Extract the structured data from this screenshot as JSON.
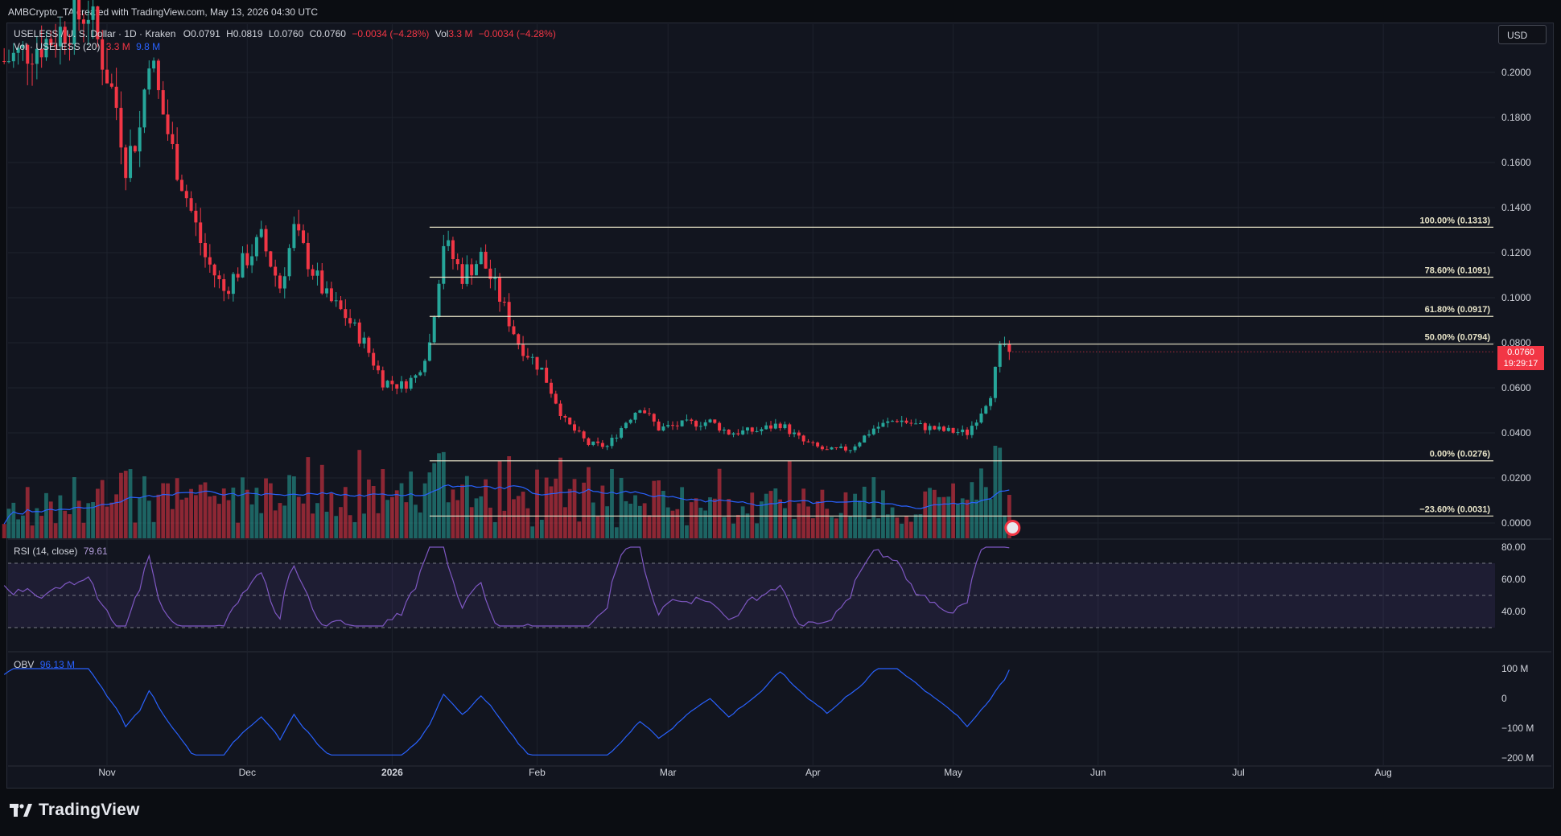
{
  "header": {
    "credit": "AMBCrypto_TA created with TradingView.com, May 13, 2026 04:30 UTC"
  },
  "toolbar": {
    "currency_label": "USD"
  },
  "legend": {
    "symbol": "USELESS / U. S. Dollar · 1D · Kraken",
    "open": "O0.0791",
    "high": "H0.0819",
    "low": "L0.0760",
    "close": "C0.0760",
    "change": "−0.0034 (−4.28%)",
    "vol_label": "Vol",
    "vol_value": "3.3 M",
    "vol_change": "−0.0034 (−4.28%)",
    "vol_ma_label": "Vol · USELESS (20)",
    "vol_ma_value1": "3.3 M",
    "vol_ma_value2": "9.8 M",
    "rsi_label": "RSI (14, close)",
    "rsi_value": "79.61",
    "obv_label": "OBV",
    "obv_value": "96.13 M"
  },
  "last_price": {
    "price": "0.0760",
    "countdown": "19:29:17"
  },
  "footer": {
    "brand": "TradingView"
  },
  "colors": {
    "up": "#26a69a",
    "down": "#f23645",
    "fib": "#e8e4c8",
    "rsi": "#7e57c2",
    "obv": "#2962ff",
    "vol_ma": "#2962ff",
    "grid": "#1e222d"
  },
  "chart_data": [
    {
      "type": "candlestick",
      "title": "USELESS / U. S. Dollar · 1D · Kraken",
      "y_axis_ticks": [
        "0.2000",
        "0.1800",
        "0.1600",
        "0.1400",
        "0.1200",
        "0.1000",
        "0.0800",
        "0.0600",
        "0.0400",
        "0.0200",
        "0.0000"
      ],
      "ylim": [
        0,
        0.2
      ],
      "x_axis_ticks": [
        "Nov",
        "Dec",
        "2026",
        "Feb",
        "Mar",
        "Apr",
        "May",
        "Jun",
        "Jul",
        "Aug"
      ],
      "x_tick_dates": [
        "2025-11-01",
        "2025-12-01",
        "2026-01-01",
        "2026-02-01",
        "2026-03-01",
        "2026-04-01",
        "2026-05-01",
        "2026-06-01",
        "2026-07-01",
        "2026-08-01"
      ],
      "fib_levels": [
        {
          "label": "100.00% (0.1313)",
          "value": 0.1313
        },
        {
          "label": "78.60% (0.1091)",
          "value": 0.1091
        },
        {
          "label": "61.80% (0.0917)",
          "value": 0.0917
        },
        {
          "label": "50.00% (0.0794)",
          "value": 0.0794
        },
        {
          "label": "0.00% (0.0276)",
          "value": 0.0276
        },
        {
          "label": "−23.60% (0.0031)",
          "value": 0.0031
        }
      ],
      "fib_start_date": "2026-01-09",
      "price_anchors": [
        [
          "2025-10-10",
          0.205
        ],
        [
          "2025-10-20",
          0.215
        ],
        [
          "2025-10-28",
          0.228
        ],
        [
          "2025-11-03",
          0.185
        ],
        [
          "2025-11-05",
          0.16
        ],
        [
          "2025-11-08",
          0.175
        ],
        [
          "2025-11-10",
          0.21
        ],
        [
          "2025-11-12",
          0.19
        ],
        [
          "2025-11-15",
          0.165
        ],
        [
          "2025-11-18",
          0.145
        ],
        [
          "2025-11-22",
          0.118
        ],
        [
          "2025-11-26",
          0.103
        ],
        [
          "2025-11-30",
          0.115
        ],
        [
          "2025-12-04",
          0.126
        ],
        [
          "2025-12-08",
          0.105
        ],
        [
          "2025-12-11",
          0.13
        ],
        [
          "2025-12-15",
          0.112
        ],
        [
          "2025-12-18",
          0.1
        ],
        [
          "2025-12-22",
          0.092
        ],
        [
          "2025-12-26",
          0.08
        ],
        [
          "2025-12-30",
          0.063
        ],
        [
          "2026-01-03",
          0.061
        ],
        [
          "2026-01-06",
          0.065
        ],
        [
          "2026-01-09",
          0.08
        ],
        [
          "2026-01-12",
          0.125
        ],
        [
          "2026-01-16",
          0.11
        ],
        [
          "2026-01-20",
          0.118
        ],
        [
          "2026-01-24",
          0.1
        ],
        [
          "2026-01-28",
          0.08
        ],
        [
          "2026-02-02",
          0.068
        ],
        [
          "2026-02-07",
          0.045
        ],
        [
          "2026-02-12",
          0.035
        ],
        [
          "2026-02-16",
          0.034
        ],
        [
          "2026-02-20",
          0.045
        ],
        [
          "2026-02-23",
          0.052
        ],
        [
          "2026-02-27",
          0.042
        ],
        [
          "2026-03-05",
          0.044
        ],
        [
          "2026-03-10",
          0.045
        ],
        [
          "2026-03-14",
          0.04
        ],
        [
          "2026-03-20",
          0.041
        ],
        [
          "2026-03-25",
          0.044
        ],
        [
          "2026-03-30",
          0.036
        ],
        [
          "2026-04-04",
          0.032
        ],
        [
          "2026-04-09",
          0.033
        ],
        [
          "2026-04-14",
          0.042
        ],
        [
          "2026-04-19",
          0.046
        ],
        [
          "2026-04-24",
          0.043
        ],
        [
          "2026-04-29",
          0.041
        ],
        [
          "2026-05-04",
          0.04
        ],
        [
          "2026-05-07",
          0.05
        ],
        [
          "2026-05-09",
          0.058
        ],
        [
          "2026-05-10",
          0.067
        ],
        [
          "2026-05-11",
          0.076
        ],
        [
          "2026-05-12",
          0.0791
        ],
        [
          "2026-05-13",
          0.076
        ]
      ]
    },
    {
      "type": "bar",
      "title": "Vol · USELESS (20)",
      "note": "volume histogram with 20-period moving average"
    },
    {
      "type": "line",
      "title": "RSI (14, close)",
      "y_axis_ticks": [
        "80.00",
        "60.00",
        "40.00"
      ],
      "bands": [
        30,
        50,
        70
      ],
      "last": 79.61
    },
    {
      "type": "line",
      "title": "OBV",
      "y_axis_ticks": [
        "100 M",
        "0",
        "−100 M",
        "−200 M"
      ],
      "last": "96.13 M"
    }
  ]
}
